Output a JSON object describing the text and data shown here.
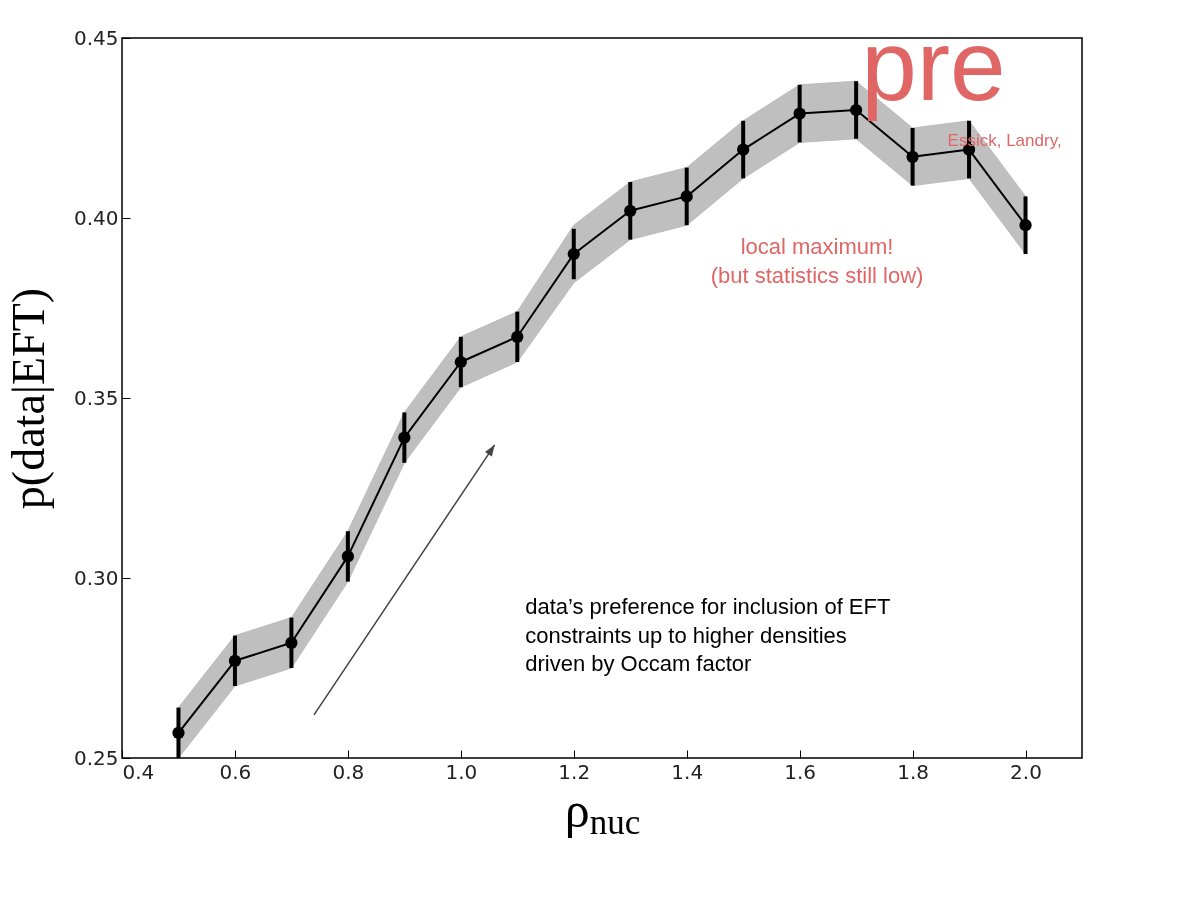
{
  "chart_data": {
    "type": "line",
    "xlabel": "ρ$_{nuc}$",
    "ylabel": "p(data|EFT)",
    "x": [
      0.5,
      0.6,
      0.7,
      0.8,
      0.9,
      1.0,
      1.1,
      1.2,
      1.3,
      1.4,
      1.5,
      1.6,
      1.7,
      1.8,
      1.9,
      2.0
    ],
    "series": [
      {
        "color": "#000000",
        "values": [
          0.257,
          0.277,
          0.282,
          0.306,
          0.339,
          0.36,
          0.367,
          0.39,
          0.402,
          0.406,
          0.419,
          0.429,
          0.43,
          0.417,
          0.419,
          0.398
        ],
        "errors": [
          0.007,
          0.007,
          0.007,
          0.007,
          0.007,
          0.007,
          0.007,
          0.007,
          0.008,
          0.008,
          0.008,
          0.008,
          0.008,
          0.008,
          0.008,
          0.008
        ],
        "lower": [
          0.25,
          0.27,
          0.275,
          0.299,
          0.332,
          0.353,
          0.36,
          0.382,
          0.394,
          0.398,
          0.411,
          0.421,
          0.422,
          0.409,
          0.411,
          0.39
        ],
        "upper": [
          0.264,
          0.284,
          0.289,
          0.313,
          0.346,
          0.367,
          0.374,
          0.398,
          0.41,
          0.414,
          0.427,
          0.437,
          0.438,
          0.425,
          0.427,
          0.406
        ]
      }
    ],
    "marker": "circle",
    "line_style": "solid",
    "grid": false,
    "xlim": [
      0.4,
      2.1
    ],
    "xticks": [
      {
        "value": 0.4,
        "label": "0.4"
      },
      {
        "value": 0.6,
        "label": "0.6"
      },
      {
        "value": 0.8,
        "label": "0.8"
      },
      {
        "value": 1.0,
        "label": "1.0"
      },
      {
        "value": 1.2,
        "label": "1.2"
      },
      {
        "value": 1.4,
        "label": "1.4"
      },
      {
        "value": 1.6,
        "label": "1.6"
      },
      {
        "value": 1.8,
        "label": "1.8"
      },
      {
        "value": 2.0,
        "label": "2.0"
      }
    ],
    "ylim": [
      0.25,
      0.45
    ],
    "yticks": [
      {
        "value": 0.25,
        "label": "0.25"
      },
      {
        "value": 0.3,
        "label": "0.30"
      },
      {
        "value": 0.35,
        "label": "0.35"
      },
      {
        "value": 0.4,
        "label": "0.40"
      },
      {
        "value": 0.45,
        "label": "0.45"
      }
    ],
    "annotations": [
      "local maximum!\n(but statistics still low)",
      "data’s preference for inclusion of EFT\nconstraints up to higher densities\ndriven by Occam factor",
      "pre",
      "Essick, Landry,"
    ]
  }
}
